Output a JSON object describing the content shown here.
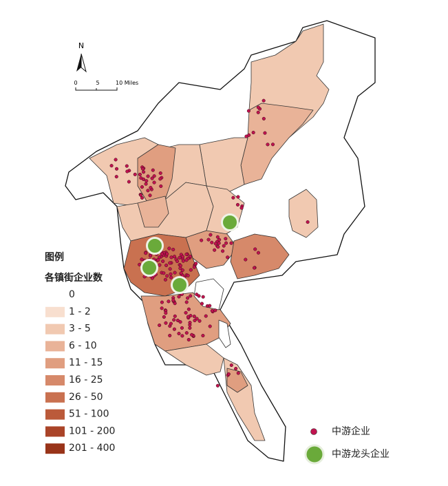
{
  "north_arrow": {
    "label": "N"
  },
  "scale_bar": {
    "labels": [
      "0",
      "5",
      "10 Miles"
    ]
  },
  "legend": {
    "title": "图例",
    "subtitle": "各镇街企业数",
    "classes": [
      {
        "label": "0",
        "color": "#ffffff"
      },
      {
        "label": "1 - 2",
        "color": "#f8dfcf"
      },
      {
        "label": "3 - 5",
        "color": "#f1c9b1"
      },
      {
        "label": "6 - 10",
        "color": "#e9b398"
      },
      {
        "label": "11 - 15",
        "color": "#e09e80"
      },
      {
        "label": "16 - 25",
        "color": "#d6896a"
      },
      {
        "label": "26 - 50",
        "color": "#c97150"
      },
      {
        "label": "51 - 100",
        "color": "#bb5a3a"
      },
      {
        "label": "101 - 200",
        "color": "#aa4428"
      },
      {
        "label": "201 - 400",
        "color": "#993419"
      }
    ],
    "points": [
      {
        "label": "中游企业",
        "color": "#c0134f"
      },
      {
        "label": "中游龙头企业",
        "color": "#6aaa3a"
      }
    ]
  }
}
